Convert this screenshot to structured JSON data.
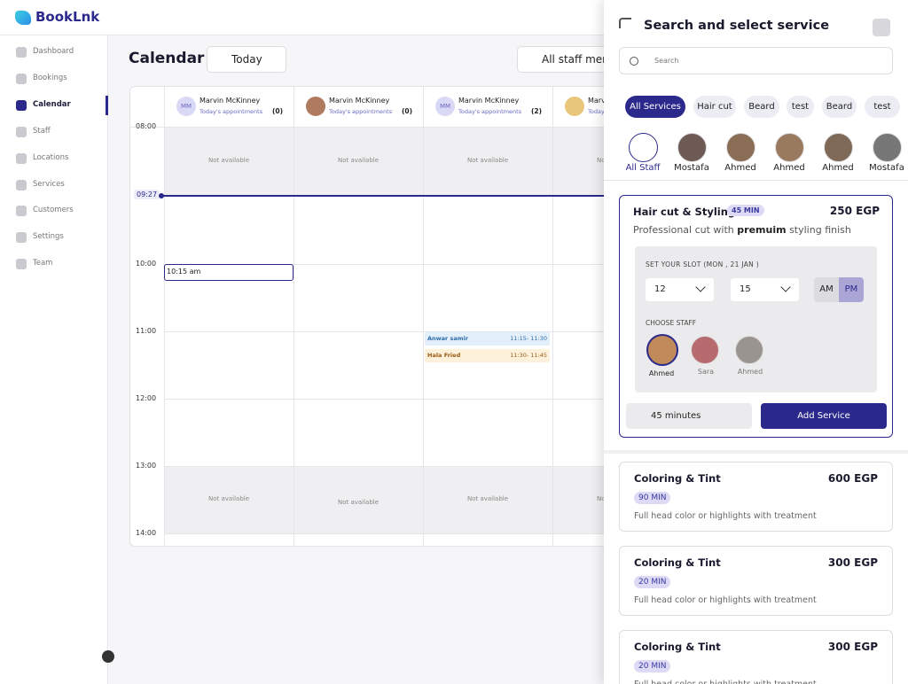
{
  "header": {
    "brand": "BookLnk"
  },
  "sidebar": {
    "items": [
      "Dashboard",
      "Bookings",
      "Calendar",
      "Staff",
      "Locations",
      "Services",
      "Customers",
      "Settings",
      "Team"
    ],
    "active": 2
  },
  "calendar": {
    "title": "Calendar",
    "date_filter": "Today",
    "staff_filter": "All staff members",
    "staff": [
      {
        "initials": "MM",
        "name": "Marvin McKinney",
        "subtitle": "Today's appointments",
        "count": "(0)"
      },
      {
        "name": "Marvin McKinney",
        "subtitle": "Today's appointments",
        "count": "(0)"
      },
      {
        "initials": "MM",
        "name": "Marvin McKinney",
        "subtitle": "Today's appointments",
        "count": "(2)"
      },
      {
        "name": "Marvin McKinney",
        "subtitle": "Today's appointments"
      }
    ],
    "times": [
      "08:00",
      "10:00",
      "11:00",
      "12:00",
      "13:00",
      "14:00"
    ],
    "current_time": "09:27",
    "unavailable_label": "Not available",
    "events": [
      {
        "label": "10:15 am"
      },
      {
        "name": "Anwar samir",
        "time": "11:15- 11:30"
      },
      {
        "name": "Hala Fried",
        "time": "11:30- 11:45"
      }
    ]
  },
  "panel": {
    "title": "Search and select service",
    "search_placeholder": "Search",
    "chips": [
      "All Services",
      "Hair cut",
      "Beard",
      "test",
      "Beard",
      "test"
    ],
    "active_chip": 0,
    "staff": [
      "All Staff",
      "Mostafa",
      "Ahmed",
      "Ahmed",
      "Ahmed",
      "Mostafa"
    ],
    "selected_service": {
      "name": "Hair cut & Styling",
      "duration": "45 MIN",
      "price": "250 EGP",
      "description": [
        "Professional cut with ",
        "premuim",
        " styling finish"
      ],
      "slot_label": "SET YOUR SLOT (MON , 21 JAN )",
      "hour": "12",
      "minute": "15",
      "periods": [
        "AM",
        "PM"
      ],
      "active_period": 1,
      "staff_label": "CHOOSE STAFF",
      "staff": [
        "Ahmed",
        "Sara",
        "Ahmed"
      ],
      "total": "45 minutes",
      "action": "Add Service"
    },
    "services": [
      {
        "name": "Coloring & Tint",
        "duration": "90 MIN",
        "price": "600 EGP",
        "description": "Full head color or highlights with treatment"
      },
      {
        "name": "Coloring & Tint",
        "duration": "20 MIN",
        "price": "300 EGP",
        "description": "Full head color or highlights with treatment"
      },
      {
        "name": "Coloring & Tint",
        "duration": "20 MIN",
        "price": "300 EGP",
        "description": "Full head color or highlights with treatment"
      }
    ]
  }
}
